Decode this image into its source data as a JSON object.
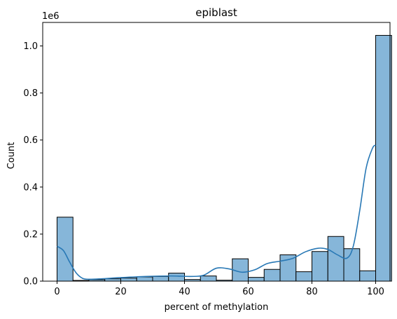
{
  "chart_data": {
    "type": "bar",
    "title": "epiblast",
    "xlabel": "percent of methylation",
    "ylabel": "Count",
    "y_scale_label": "1e6",
    "xlim": [
      -4.5,
      104.5
    ],
    "ylim": [
      0,
      1.1
    ],
    "bin_width": 5,
    "bin_edges": [
      0,
      5,
      10,
      15,
      20,
      25,
      30,
      35,
      40,
      45,
      50,
      55,
      60,
      65,
      70,
      75,
      80,
      85,
      90,
      95,
      100
    ],
    "values": [
      0.272,
      0.003,
      0.006,
      0.01,
      0.013,
      0.018,
      0.02,
      0.034,
      0.007,
      0.022,
      0.004,
      0.095,
      0.016,
      0.05,
      0.112,
      0.04,
      0.126,
      0.19,
      0.138,
      0.044,
      1.045
    ],
    "x_ticks": [
      0,
      20,
      40,
      60,
      80,
      100
    ],
    "x_tick_labels": [
      "0",
      "20",
      "40",
      "60",
      "80",
      "100"
    ],
    "y_ticks": [
      0,
      0.2,
      0.4,
      0.6,
      0.8,
      1.0
    ],
    "y_tick_labels": [
      "0.0",
      "0.2",
      "0.4",
      "0.6",
      "0.8",
      "1.0"
    ],
    "kde": {
      "x": [
        0,
        2,
        4,
        6,
        8,
        10,
        14,
        20,
        28,
        36,
        42,
        46,
        50,
        54,
        58,
        62,
        66,
        70,
        74,
        78,
        82,
        85,
        88,
        91,
        93,
        95,
        97,
        99,
        100
      ],
      "y": [
        0.148,
        0.13,
        0.08,
        0.035,
        0.012,
        0.008,
        0.01,
        0.015,
        0.02,
        0.022,
        0.02,
        0.025,
        0.055,
        0.052,
        0.038,
        0.048,
        0.075,
        0.085,
        0.097,
        0.125,
        0.14,
        0.135,
        0.112,
        0.098,
        0.15,
        0.3,
        0.48,
        0.565,
        0.578
      ]
    },
    "grid": false,
    "bar_fill": "#86b6d9",
    "bar_edge": "#000000",
    "kde_color": "#2878b5"
  }
}
